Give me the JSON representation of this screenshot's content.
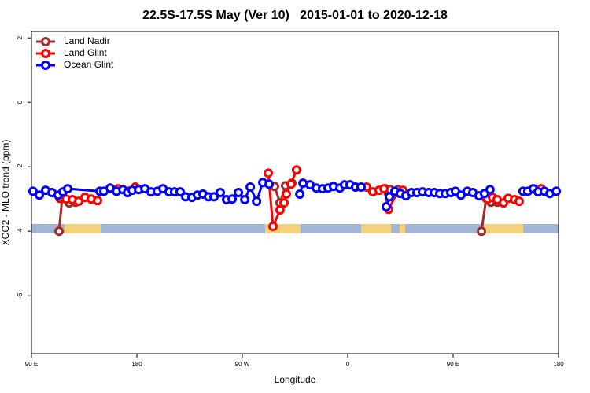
{
  "chart_data": {
    "type": "line",
    "title": "22.5S-17.5S May (Ver 10)   2015-01-01 to 2020-12-18",
    "xlabel": "Longitude",
    "ylabel": "XCO2 - MLO trend (ppm)",
    "xlim": [
      90,
      540
    ],
    "xticks": [
      {
        "value": 90,
        "label": "90 E"
      },
      180,
      {
        "value": 270,
        "label": "90 W"
      },
      {
        "value": 360,
        "label": "0"
      },
      {
        "value": 450,
        "label": "90 E"
      },
      {
        "value": 540,
        "label": "180"
      }
    ],
    "ylim": [
      -7.8,
      2.2
    ],
    "yticks": [
      2,
      0,
      -2,
      -4,
      -6
    ],
    "legend": "top-left",
    "series": [
      {
        "name": "Land Nadir",
        "color": "#a52a2a",
        "x": [
          113.5,
          116.2,
          122.2,
          127.6,
          null,
          297.5,
          302.2,
          306.9,
          312.3,
          null,
          392.2,
          396.3,
          403,
          407,
          null,
          474.2,
          478.2,
          482.2,
          487.6
        ],
        "values": [
          -4.0,
          -2.98,
          -3.12,
          -3.1,
          null,
          -2.61,
          -3.12,
          -2.59,
          -2.51,
          null,
          -2.68,
          -2.71,
          -2.71,
          -2.78,
          null,
          -4.0,
          -2.98,
          -3.1,
          -3.1
        ]
      },
      {
        "name": "Land Glint",
        "color": "#ff0000",
        "x": [
          114.2,
          119.6,
          124.9,
          130.3,
          135.7,
          141,
          146.4,
          null,
          163.9,
          178.7,
          null,
          292.2,
          296.2,
          302.2,
          305.6,
          307.6,
          311.6,
          316.3,
          null,
          376.1,
          381.5,
          386.8,
          390.9,
          394.9,
          402.3,
          407,
          null,
          479.5,
          483.6,
          487.6,
          493,
          497,
          502.4,
          506.4,
          null,
          525.2
        ],
        "values": [
          -2.98,
          -3.0,
          -3.02,
          -3.07,
          -2.95,
          -3.0,
          -3.05,
          null,
          -2.68,
          -2.63,
          null,
          -2.2,
          -3.85,
          -3.34,
          -3.12,
          -2.85,
          -2.54,
          -2.1,
          null,
          -2.63,
          -2.78,
          -2.73,
          -2.68,
          -3.32,
          -2.8,
          -2.73,
          null,
          -3.0,
          -2.95,
          -3.02,
          -3.12,
          -2.98,
          -3.02,
          -3.07,
          null,
          -2.68
        ]
      },
      {
        "name": "Ocean Glint",
        "color": "#0000ff",
        "x": [
          91.3,
          96.7,
          102.1,
          107.5,
          112.8,
          116.9,
          120.9,
          148.4,
          151.8,
          157.2,
          162.6,
          168,
          172,
          176,
          181.4,
          186.8,
          192.1,
          197.5,
          202.2,
          207.5,
          212.2,
          216.9,
          221.6,
          227,
          231.7,
          236.4,
          241.1,
          245.8,
          251.2,
          256.6,
          261.3,
          266.7,
          272.1,
          276.8,
          282.2,
          287.5,
          292.9,
          null,
          319.1,
          321.8,
          327.8,
          333.2,
          338.5,
          343.2,
          347.9,
          353.3,
          357.3,
          362,
          366.7,
          371.4,
          null,
          392.9,
          395.6,
          400.3,
          405,
          409.7,
          414.4,
          419.1,
          423.8,
          429.2,
          433.9,
          438.6,
          443.3,
          448,
          452,
          456.7,
          462.1,
          466.8,
          472.1,
          476.8,
          481.5,
          null,
          509.7,
          513.8,
          518.5,
          522.5,
          527.9,
          532.6,
          538
        ],
        "values": [
          -2.76,
          -2.88,
          -2.73,
          -2.8,
          -2.88,
          -2.78,
          -2.68,
          -2.76,
          -2.76,
          -2.66,
          -2.76,
          -2.71,
          -2.8,
          -2.73,
          -2.71,
          -2.68,
          -2.78,
          -2.76,
          -2.68,
          -2.78,
          -2.78,
          -2.78,
          -2.93,
          -2.95,
          -2.88,
          -2.85,
          -2.93,
          -2.93,
          -2.8,
          -3.02,
          -3.0,
          -2.8,
          -3.02,
          -2.63,
          -3.07,
          -2.49,
          -2.54,
          null,
          -2.85,
          -2.51,
          -2.56,
          -2.66,
          -2.68,
          -2.66,
          -2.61,
          -2.66,
          -2.56,
          -2.56,
          -2.63,
          -2.63,
          null,
          -3.24,
          -2.93,
          -2.76,
          -2.83,
          -2.9,
          -2.8,
          -2.8,
          -2.78,
          -2.8,
          -2.8,
          -2.83,
          -2.83,
          -2.8,
          -2.76,
          -2.88,
          -2.76,
          -2.8,
          -2.9,
          -2.83,
          -2.71,
          null,
          -2.76,
          -2.76,
          -2.68,
          -2.78,
          -2.76,
          -2.83,
          -2.76
        ]
      }
    ]
  }
}
